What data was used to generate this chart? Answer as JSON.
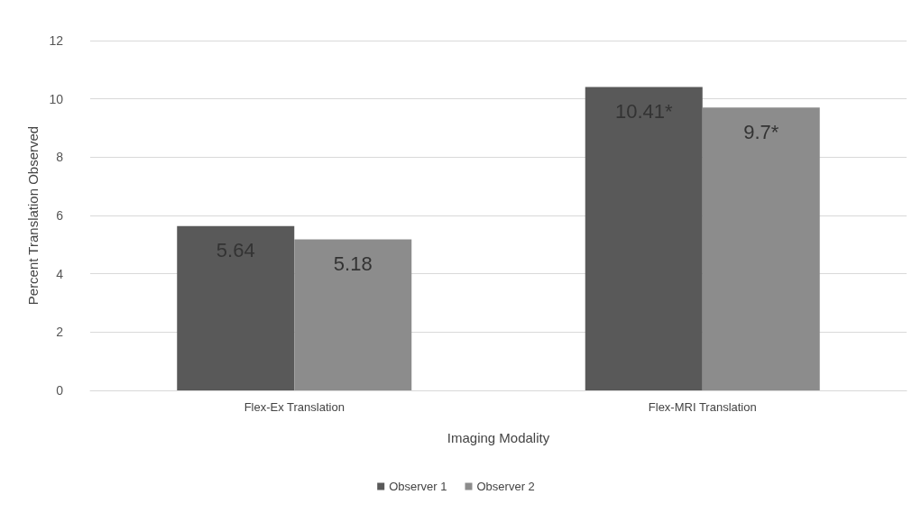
{
  "chart_data": {
    "type": "bar",
    "xlabel": "Imaging Modality",
    "ylabel": "Percent Translation Observed",
    "categories": [
      "Flex-Ex Translation",
      "Flex-MRI Translation"
    ],
    "series": [
      {
        "name": "Observer 1",
        "color": "#595959",
        "values": [
          5.64,
          10.41
        ],
        "value_labels": [
          "5.64",
          "10.41*"
        ]
      },
      {
        "name": "Observer 2",
        "color": "#8c8c8c",
        "values": [
          5.18,
          9.7
        ],
        "value_labels": [
          "5.18",
          "9.7*"
        ]
      }
    ],
    "ylim": [
      0,
      12
    ],
    "yticks": [
      0,
      2,
      4,
      6,
      8,
      10,
      12
    ],
    "grid": "y",
    "legend": "bottom"
  }
}
